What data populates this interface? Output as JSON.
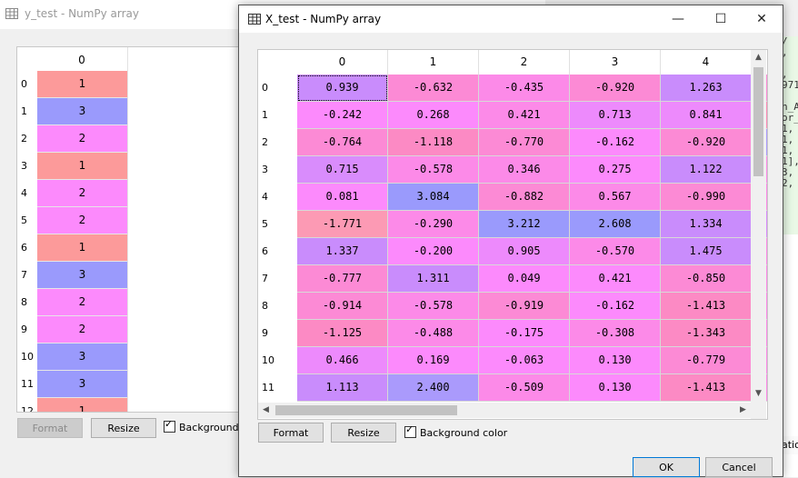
{
  "bg_window": {
    "title": "y_test - NumPy array",
    "column_header": "0",
    "rows": [
      {
        "index": "0",
        "value": "1",
        "color": "#fc9a9a"
      },
      {
        "index": "1",
        "value": "3",
        "color": "#9a9afc"
      },
      {
        "index": "2",
        "value": "2",
        "color": "#fc8afc"
      },
      {
        "index": "3",
        "value": "1",
        "color": "#fc9a9a"
      },
      {
        "index": "4",
        "value": "2",
        "color": "#fc8afc"
      },
      {
        "index": "5",
        "value": "2",
        "color": "#fc8afc"
      },
      {
        "index": "6",
        "value": "1",
        "color": "#fc9a9a"
      },
      {
        "index": "7",
        "value": "3",
        "color": "#9a9afc"
      },
      {
        "index": "8",
        "value": "2",
        "color": "#fc8afc"
      },
      {
        "index": "9",
        "value": "2",
        "color": "#fc8afc"
      },
      {
        "index": "10",
        "value": "3",
        "color": "#9a9afc"
      },
      {
        "index": "11",
        "value": "3",
        "color": "#9a9afc"
      },
      {
        "index": "12",
        "value": "1",
        "color": "#fc9a9a"
      }
    ],
    "format_label": "Format",
    "resize_label": "Resize",
    "background_color_label": "Background c"
  },
  "right_strip": {
    "lines": [
      "/",
      ",",
      "",
      ",",
      "971",
      "",
      "n_A",
      "or_",
      "1,",
      "1,",
      "1,",
      "1],",
      "3,",
      "2,"
    ],
    "tab_label": "ation"
  },
  "dialog": {
    "title": "X_test - NumPy array",
    "minimize_symbol": "—",
    "maximize_symbol": "☐",
    "close_symbol": "✕",
    "columns": [
      "0",
      "1",
      "2",
      "3",
      "4"
    ],
    "rows": [
      {
        "index": "0",
        "cells": [
          {
            "v": "0.939",
            "c": "#c98cfc"
          },
          {
            "v": "-0.632",
            "c": "#fc8ad5"
          },
          {
            "v": "-0.435",
            "c": "#fc8ae8"
          },
          {
            "v": "-0.920",
            "c": "#fc8ad5"
          },
          {
            "v": "1.263",
            "c": "#c98cfc"
          }
        ],
        "stub": "#fc8ad5"
      },
      {
        "index": "1",
        "cells": [
          {
            "v": "-0.242",
            "c": "#fc8afc"
          },
          {
            "v": "0.268",
            "c": "#fc8afc"
          },
          {
            "v": "0.421",
            "c": "#fc8ae8"
          },
          {
            "v": "0.713",
            "c": "#ed8afc"
          },
          {
            "v": "0.841",
            "c": "#ed8afc"
          }
        ],
        "stub": "#fc8ab4"
      },
      {
        "index": "2",
        "cells": [
          {
            "v": "-0.764",
            "c": "#fc8ad5"
          },
          {
            "v": "-1.118",
            "c": "#fc8ac4"
          },
          {
            "v": "-0.770",
            "c": "#fc8ad5"
          },
          {
            "v": "-0.162",
            "c": "#fc8afc"
          },
          {
            "v": "-0.920",
            "c": "#fc8ad5"
          }
        ],
        "stub": "#aa9afc"
      },
      {
        "index": "3",
        "cells": [
          {
            "v": "0.715",
            "c": "#d98cfc"
          },
          {
            "v": "-0.578",
            "c": "#fc8ae8"
          },
          {
            "v": "0.346",
            "c": "#fc8ae8"
          },
          {
            "v": "0.275",
            "c": "#fc8afc"
          },
          {
            "v": "1.122",
            "c": "#c98cfc"
          }
        ],
        "stub": "#fc8ae8"
      },
      {
        "index": "4",
        "cells": [
          {
            "v": "0.081",
            "c": "#fc8afc"
          },
          {
            "v": "3.084",
            "c": "#9a9afc"
          },
          {
            "v": "-0.882",
            "c": "#fc8ad5"
          },
          {
            "v": "0.567",
            "c": "#fc8ae8"
          },
          {
            "v": "-0.990",
            "c": "#fc8ad5"
          }
        ],
        "stub": "#fc8ae8"
      },
      {
        "index": "5",
        "cells": [
          {
            "v": "-1.771",
            "c": "#fc9ab4"
          },
          {
            "v": "-0.290",
            "c": "#fc8ae8"
          },
          {
            "v": "3.212",
            "c": "#9a9afc"
          },
          {
            "v": "2.608",
            "c": "#9a9afc"
          },
          {
            "v": "1.334",
            "c": "#c98cfc"
          }
        ],
        "stub": "#d98cfc"
      },
      {
        "index": "6",
        "cells": [
          {
            "v": "1.337",
            "c": "#c98cfc"
          },
          {
            "v": "-0.200",
            "c": "#fc8afc"
          },
          {
            "v": "0.905",
            "c": "#ed8afc"
          },
          {
            "v": "-0.570",
            "c": "#fc8ae8"
          },
          {
            "v": "1.475",
            "c": "#c98cfc"
          }
        ],
        "stub": "#fc8ae8"
      },
      {
        "index": "7",
        "cells": [
          {
            "v": "-0.777",
            "c": "#fc8ad5"
          },
          {
            "v": "1.311",
            "c": "#c98cfc"
          },
          {
            "v": "0.049",
            "c": "#fc8afc"
          },
          {
            "v": "0.421",
            "c": "#fc8afc"
          },
          {
            "v": "-0.850",
            "c": "#fc8ad5"
          }
        ],
        "stub": "#fc8ae8"
      },
      {
        "index": "8",
        "cells": [
          {
            "v": "-0.914",
            "c": "#fc8ad5"
          },
          {
            "v": "-0.578",
            "c": "#fc8ae8"
          },
          {
            "v": "-0.919",
            "c": "#fc8ad5"
          },
          {
            "v": "-0.162",
            "c": "#fc8afc"
          },
          {
            "v": "-1.413",
            "c": "#fc8ac4"
          }
        ],
        "stub": "#fc8ae8"
      },
      {
        "index": "9",
        "cells": [
          {
            "v": "-1.125",
            "c": "#fc8ac4"
          },
          {
            "v": "-0.488",
            "c": "#fc8ae8"
          },
          {
            "v": "-0.175",
            "c": "#fc8afc"
          },
          {
            "v": "-0.308",
            "c": "#fc8ae8"
          },
          {
            "v": "-1.343",
            "c": "#fc8ac4"
          }
        ],
        "stub": "#fc8ae8"
      },
      {
        "index": "10",
        "cells": [
          {
            "v": "0.466",
            "c": "#ed8afc"
          },
          {
            "v": "0.169",
            "c": "#fc8afc"
          },
          {
            "v": "-0.063",
            "c": "#fc8afc"
          },
          {
            "v": "0.130",
            "c": "#fc8afc"
          },
          {
            "v": "-0.779",
            "c": "#fc8ad5"
          }
        ],
        "stub": "#fc8ae8"
      },
      {
        "index": "11",
        "cells": [
          {
            "v": "1.113",
            "c": "#c98cfc"
          },
          {
            "v": "2.400",
            "c": "#aa9afc"
          },
          {
            "v": "-0.509",
            "c": "#fc8ae8"
          },
          {
            "v": "0.130",
            "c": "#fc8afc"
          },
          {
            "v": "-1.413",
            "c": "#fc8ac4"
          }
        ],
        "stub": "#fc8ae8"
      }
    ],
    "format_label": "Format",
    "resize_label": "Resize",
    "background_color_label": "Background color",
    "background_color_checked": true,
    "ok_label": "OK",
    "cancel_label": "Cancel"
  }
}
